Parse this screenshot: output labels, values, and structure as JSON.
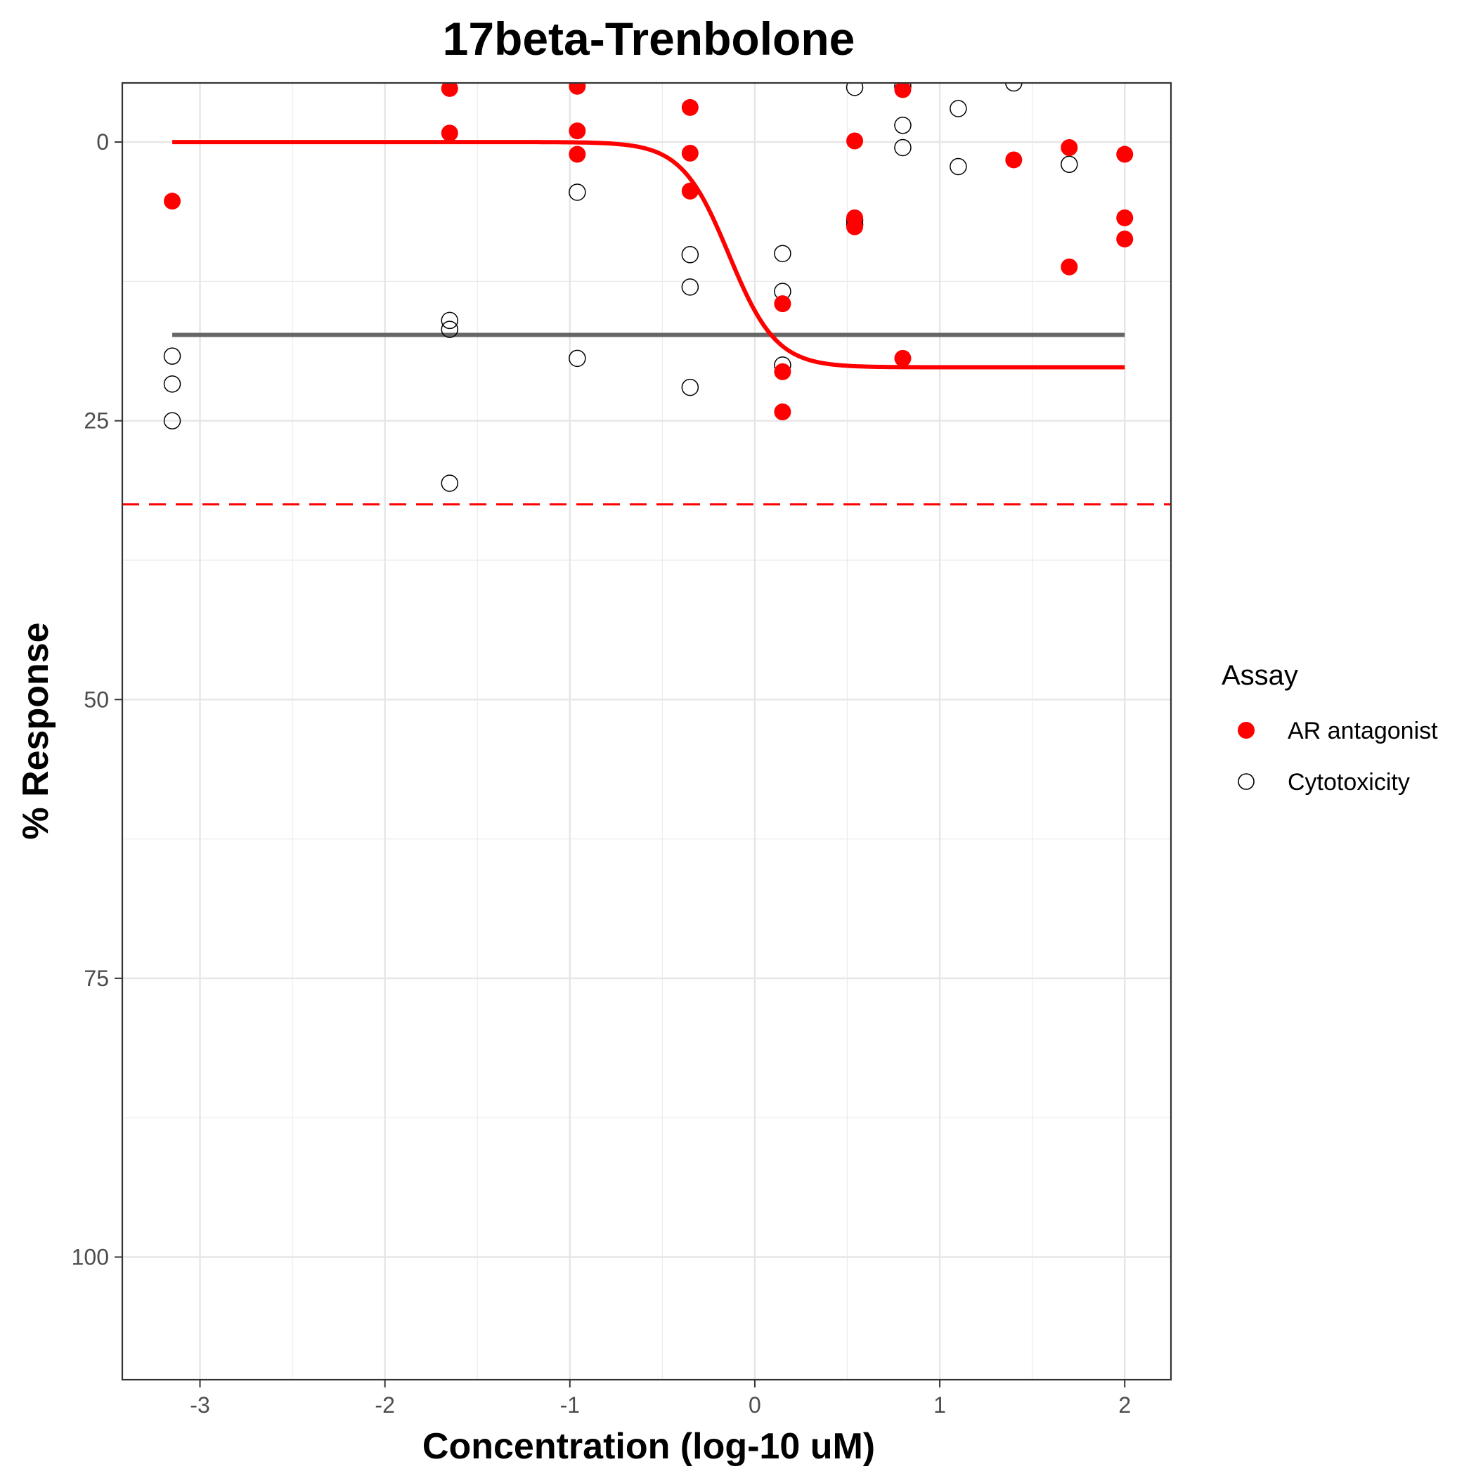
{
  "chart_data": {
    "type": "scatter",
    "title": "17beta-Trenbolone",
    "xlabel": "Concentration (log-10 uM)",
    "ylabel": "% Response",
    "xlim": [
      -3.42,
      2.25
    ],
    "ylim": [
      -5.3,
      111
    ],
    "y_reversed": true,
    "xticks": [
      -3,
      -2,
      -1,
      0,
      1,
      2
    ],
    "yticks": [
      0,
      25,
      50,
      75,
      100
    ],
    "grid": true,
    "legend": {
      "title": "Assay",
      "placement": "right",
      "entries": [
        {
          "label": "AR antagonist",
          "marker": "filled-circle",
          "color": "#ff0000"
        },
        {
          "label": "Cytotoxicity",
          "marker": "open-circle",
          "color": "#000000"
        }
      ]
    },
    "series": [
      {
        "name": "AR antagonist",
        "color": "#ff0000",
        "marker": "filled",
        "points": [
          [
            -3.15,
            5.3
          ],
          [
            -1.65,
            -4.8
          ],
          [
            -1.65,
            -0.8
          ],
          [
            -0.96,
            -5.0
          ],
          [
            -0.96,
            -1.0
          ],
          [
            -0.96,
            1.1
          ],
          [
            -0.35,
            -3.1
          ],
          [
            -0.35,
            1.0
          ],
          [
            -0.35,
            4.4
          ],
          [
            0.15,
            14.5
          ],
          [
            0.15,
            20.6
          ],
          [
            0.15,
            24.2
          ],
          [
            0.54,
            -0.1
          ],
          [
            0.54,
            6.8
          ],
          [
            0.54,
            7.6
          ],
          [
            0.8,
            -4.7
          ],
          [
            0.8,
            19.4
          ],
          [
            1.4,
            1.6
          ],
          [
            1.7,
            0.5
          ],
          [
            1.7,
            11.2
          ],
          [
            2.0,
            1.1
          ],
          [
            2.0,
            6.8
          ],
          [
            2.0,
            8.7
          ]
        ]
      },
      {
        "name": "Cytotoxicity",
        "color": "#000000",
        "marker": "open",
        "points": [
          [
            -3.15,
            19.2
          ],
          [
            -3.15,
            21.7
          ],
          [
            -3.15,
            25.0
          ],
          [
            -1.65,
            16.0
          ],
          [
            -1.65,
            16.8
          ],
          [
            -1.65,
            30.6
          ],
          [
            -0.96,
            4.5
          ],
          [
            -0.96,
            19.4
          ],
          [
            -0.35,
            10.1
          ],
          [
            -0.35,
            13.0
          ],
          [
            -0.35,
            22.0
          ],
          [
            0.15,
            10.0
          ],
          [
            0.15,
            13.4
          ],
          [
            0.15,
            20.0
          ],
          [
            0.54,
            -4.9
          ],
          [
            0.54,
            7.0
          ],
          [
            0.54,
            7.4
          ],
          [
            0.8,
            -1.5
          ],
          [
            0.8,
            0.5
          ],
          [
            0.8,
            -5.0
          ],
          [
            1.1,
            -3.0
          ],
          [
            1.1,
            2.2
          ],
          [
            1.4,
            -5.3
          ],
          [
            1.7,
            2.0
          ]
        ]
      }
    ],
    "fit_curve": {
      "series": "AR antagonist",
      "model": "hill",
      "color": "#ff0000",
      "x_range": [
        -3.15,
        2.0
      ],
      "bottom": 0,
      "top": 20.2,
      "ac50_log": -0.14,
      "hill_slope": 3.4
    },
    "reference_lines": [
      {
        "kind": "horizontal",
        "y": 17.3,
        "x_range": [
          -3.15,
          2.0
        ],
        "style": "solid",
        "color": "#666666"
      },
      {
        "kind": "horizontal",
        "y": 32.5,
        "style": "dashed",
        "color": "#ff0000"
      }
    ]
  }
}
